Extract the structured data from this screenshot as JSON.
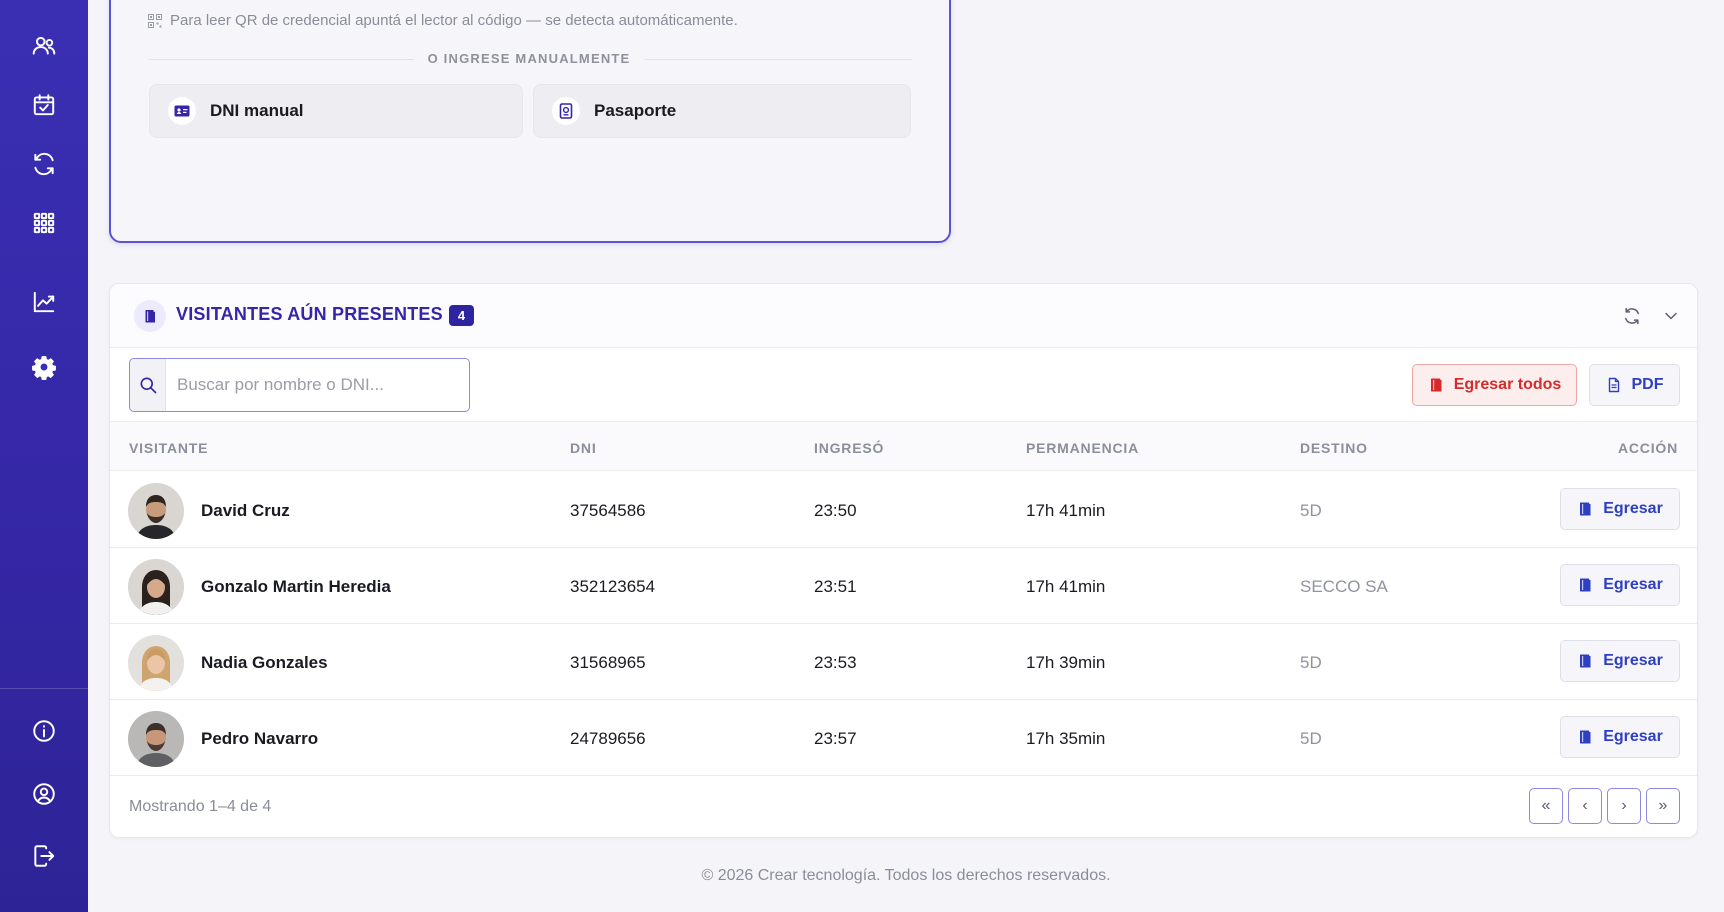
{
  "sidebar": {
    "top_items": [
      {
        "icon": "users-icon"
      },
      {
        "icon": "calendar-check-icon"
      },
      {
        "icon": "refresh-icon"
      },
      {
        "icon": "grid-icon"
      },
      {
        "icon": "chart-line-icon"
      },
      {
        "icon": "gear-icon"
      }
    ],
    "bottom_items": [
      {
        "icon": "info-icon"
      },
      {
        "icon": "user-circle-icon"
      },
      {
        "icon": "logout-icon"
      }
    ]
  },
  "scanner": {
    "hint": "Para leer QR de credencial apuntá el lector al código — se detecta automáticamente.",
    "separator": "O INGRESE MANUALMENTE",
    "manual_dni": "DNI manual",
    "passport": "Pasaporte"
  },
  "visitors": {
    "title": "VISITANTES AÚN PRESENTES",
    "count": "4",
    "search_placeholder": "Buscar por nombre o DNI...",
    "egress_all": "Egresar todos",
    "pdf": "PDF",
    "columns": {
      "visitor": "VISITANTE",
      "dni": "DNI",
      "entered": "INGRESÓ",
      "stay": "PERMANENCIA",
      "destination": "DESTINO",
      "action": "ACCIÓN"
    },
    "rows": [
      {
        "name": "David Cruz",
        "dni": "37564586",
        "entered": "23:50",
        "stay": "17h 41min",
        "destination": "5D",
        "action": "Egresar"
      },
      {
        "name": "Gonzalo Martin Heredia",
        "dni": "352123654",
        "entered": "23:51",
        "stay": "17h 41min",
        "destination": "SECCO SA",
        "action": "Egresar"
      },
      {
        "name": "Nadia Gonzales",
        "dni": "31568965",
        "entered": "23:53",
        "stay": "17h 39min",
        "destination": "5D",
        "action": "Egresar"
      },
      {
        "name": "Pedro Navarro",
        "dni": "24789656",
        "entered": "23:57",
        "stay": "17h 35min",
        "destination": "5D",
        "action": "Egresar"
      }
    ],
    "showing": "Mostrando 1–4 de 4",
    "pagination": {
      "first": "«",
      "prev": "‹",
      "next": "›",
      "last": "»"
    }
  },
  "footer": {
    "copyright": "© 2026 Crear tecnología. Todos los derechos reservados."
  },
  "colors": {
    "sidebar": "#3a2fb3",
    "accent": "#3525a8",
    "danger": "#d52b2b",
    "link": "#2f3fc1"
  }
}
